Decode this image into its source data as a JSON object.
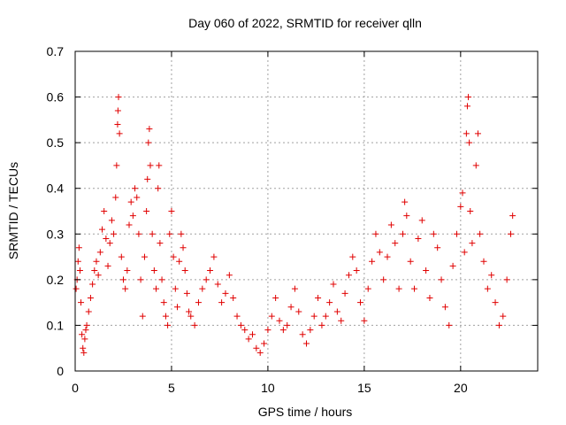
{
  "chart_data": {
    "type": "scatter",
    "title": "Day 060 of 2022, SRMTID for receiver qlln",
    "xlabel": "GPS time / hours",
    "ylabel": "SRMTID / TECUs",
    "xlim": [
      0,
      24
    ],
    "ylim": [
      0,
      0.7
    ],
    "xticks": [
      0,
      5,
      10,
      15,
      20
    ],
    "yticks": [
      0,
      0.1,
      0.2,
      0.3,
      0.4,
      0.5,
      0.6,
      0.7
    ],
    "xtick_labels": [
      "0",
      "5",
      "10",
      "15",
      "20"
    ],
    "ytick_labels": [
      "0",
      "0.1",
      "0.2",
      "0.3",
      "0.4",
      "0.5",
      "0.6",
      "0.7"
    ],
    "grid": true,
    "marker": "+",
    "color": "#e00000",
    "series": [
      {
        "name": "SRMTID",
        "points": [
          [
            0.05,
            0.18
          ],
          [
            0.1,
            0.2
          ],
          [
            0.15,
            0.24
          ],
          [
            0.2,
            0.27
          ],
          [
            0.25,
            0.22
          ],
          [
            0.3,
            0.15
          ],
          [
            0.35,
            0.08
          ],
          [
            0.4,
            0.05
          ],
          [
            0.45,
            0.04
          ],
          [
            0.5,
            0.07
          ],
          [
            0.55,
            0.09
          ],
          [
            0.6,
            0.1
          ],
          [
            0.7,
            0.13
          ],
          [
            0.8,
            0.16
          ],
          [
            0.9,
            0.19
          ],
          [
            1.0,
            0.22
          ],
          [
            1.1,
            0.24
          ],
          [
            1.2,
            0.21
          ],
          [
            1.3,
            0.26
          ],
          [
            1.4,
            0.31
          ],
          [
            1.5,
            0.35
          ],
          [
            1.6,
            0.29
          ],
          [
            1.7,
            0.23
          ],
          [
            1.8,
            0.28
          ],
          [
            1.9,
            0.33
          ],
          [
            2.0,
            0.3
          ],
          [
            2.1,
            0.38
          ],
          [
            2.15,
            0.45
          ],
          [
            2.2,
            0.54
          ],
          [
            2.22,
            0.57
          ],
          [
            2.25,
            0.6
          ],
          [
            2.3,
            0.52
          ],
          [
            2.4,
            0.25
          ],
          [
            2.5,
            0.2
          ],
          [
            2.6,
            0.18
          ],
          [
            2.7,
            0.22
          ],
          [
            2.8,
            0.32
          ],
          [
            2.9,
            0.37
          ],
          [
            3.0,
            0.34
          ],
          [
            3.1,
            0.4
          ],
          [
            3.2,
            0.38
          ],
          [
            3.3,
            0.3
          ],
          [
            3.4,
            0.2
          ],
          [
            3.5,
            0.12
          ],
          [
            3.6,
            0.25
          ],
          [
            3.7,
            0.35
          ],
          [
            3.75,
            0.42
          ],
          [
            3.8,
            0.5
          ],
          [
            3.85,
            0.53
          ],
          [
            3.9,
            0.45
          ],
          [
            4.0,
            0.3
          ],
          [
            4.1,
            0.22
          ],
          [
            4.2,
            0.18
          ],
          [
            4.3,
            0.4
          ],
          [
            4.35,
            0.45
          ],
          [
            4.4,
            0.28
          ],
          [
            4.5,
            0.2
          ],
          [
            4.6,
            0.15
          ],
          [
            4.7,
            0.12
          ],
          [
            4.8,
            0.1
          ],
          [
            4.9,
            0.3
          ],
          [
            5.0,
            0.35
          ],
          [
            5.1,
            0.25
          ],
          [
            5.2,
            0.18
          ],
          [
            5.3,
            0.14
          ],
          [
            5.4,
            0.24
          ],
          [
            5.5,
            0.3
          ],
          [
            5.6,
            0.27
          ],
          [
            5.7,
            0.22
          ],
          [
            5.8,
            0.17
          ],
          [
            5.9,
            0.13
          ],
          [
            6.0,
            0.12
          ],
          [
            6.2,
            0.1
          ],
          [
            6.4,
            0.15
          ],
          [
            6.6,
            0.18
          ],
          [
            6.8,
            0.2
          ],
          [
            7.0,
            0.22
          ],
          [
            7.2,
            0.25
          ],
          [
            7.4,
            0.19
          ],
          [
            7.6,
            0.15
          ],
          [
            7.8,
            0.17
          ],
          [
            8.0,
            0.21
          ],
          [
            8.2,
            0.16
          ],
          [
            8.4,
            0.12
          ],
          [
            8.6,
            0.1
          ],
          [
            8.8,
            0.09
          ],
          [
            9.0,
            0.07
          ],
          [
            9.2,
            0.08
          ],
          [
            9.4,
            0.05
          ],
          [
            9.6,
            0.04
          ],
          [
            9.8,
            0.06
          ],
          [
            10.0,
            0.09
          ],
          [
            10.2,
            0.12
          ],
          [
            10.4,
            0.16
          ],
          [
            10.6,
            0.11
          ],
          [
            10.8,
            0.09
          ],
          [
            11.0,
            0.1
          ],
          [
            11.2,
            0.14
          ],
          [
            11.4,
            0.18
          ],
          [
            11.6,
            0.13
          ],
          [
            11.8,
            0.08
          ],
          [
            12.0,
            0.06
          ],
          [
            12.2,
            0.09
          ],
          [
            12.4,
            0.12
          ],
          [
            12.6,
            0.16
          ],
          [
            12.8,
            0.1
          ],
          [
            13.0,
            0.12
          ],
          [
            13.2,
            0.15
          ],
          [
            13.4,
            0.19
          ],
          [
            13.6,
            0.13
          ],
          [
            13.8,
            0.11
          ],
          [
            14.0,
            0.17
          ],
          [
            14.2,
            0.21
          ],
          [
            14.4,
            0.25
          ],
          [
            14.6,
            0.22
          ],
          [
            14.8,
            0.15
          ],
          [
            15.0,
            0.11
          ],
          [
            15.2,
            0.18
          ],
          [
            15.4,
            0.24
          ],
          [
            15.6,
            0.3
          ],
          [
            15.8,
            0.26
          ],
          [
            16.0,
            0.2
          ],
          [
            16.2,
            0.25
          ],
          [
            16.4,
            0.32
          ],
          [
            16.6,
            0.28
          ],
          [
            16.8,
            0.18
          ],
          [
            17.0,
            0.3
          ],
          [
            17.1,
            0.37
          ],
          [
            17.2,
            0.34
          ],
          [
            17.4,
            0.24
          ],
          [
            17.6,
            0.18
          ],
          [
            17.8,
            0.29
          ],
          [
            18.0,
            0.33
          ],
          [
            18.2,
            0.22
          ],
          [
            18.4,
            0.16
          ],
          [
            18.6,
            0.3
          ],
          [
            18.8,
            0.27
          ],
          [
            19.0,
            0.2
          ],
          [
            19.2,
            0.14
          ],
          [
            19.4,
            0.1
          ],
          [
            19.6,
            0.23
          ],
          [
            19.8,
            0.3
          ],
          [
            20.0,
            0.36
          ],
          [
            20.1,
            0.39
          ],
          [
            20.2,
            0.26
          ],
          [
            20.3,
            0.52
          ],
          [
            20.35,
            0.58
          ],
          [
            20.4,
            0.6
          ],
          [
            20.45,
            0.5
          ],
          [
            20.5,
            0.35
          ],
          [
            20.6,
            0.28
          ],
          [
            20.8,
            0.45
          ],
          [
            20.9,
            0.52
          ],
          [
            21.0,
            0.3
          ],
          [
            21.2,
            0.24
          ],
          [
            21.4,
            0.18
          ],
          [
            21.6,
            0.21
          ],
          [
            21.8,
            0.15
          ],
          [
            22.0,
            0.1
          ],
          [
            22.2,
            0.12
          ],
          [
            22.4,
            0.2
          ],
          [
            22.6,
            0.3
          ],
          [
            22.7,
            0.34
          ]
        ]
      }
    ]
  }
}
